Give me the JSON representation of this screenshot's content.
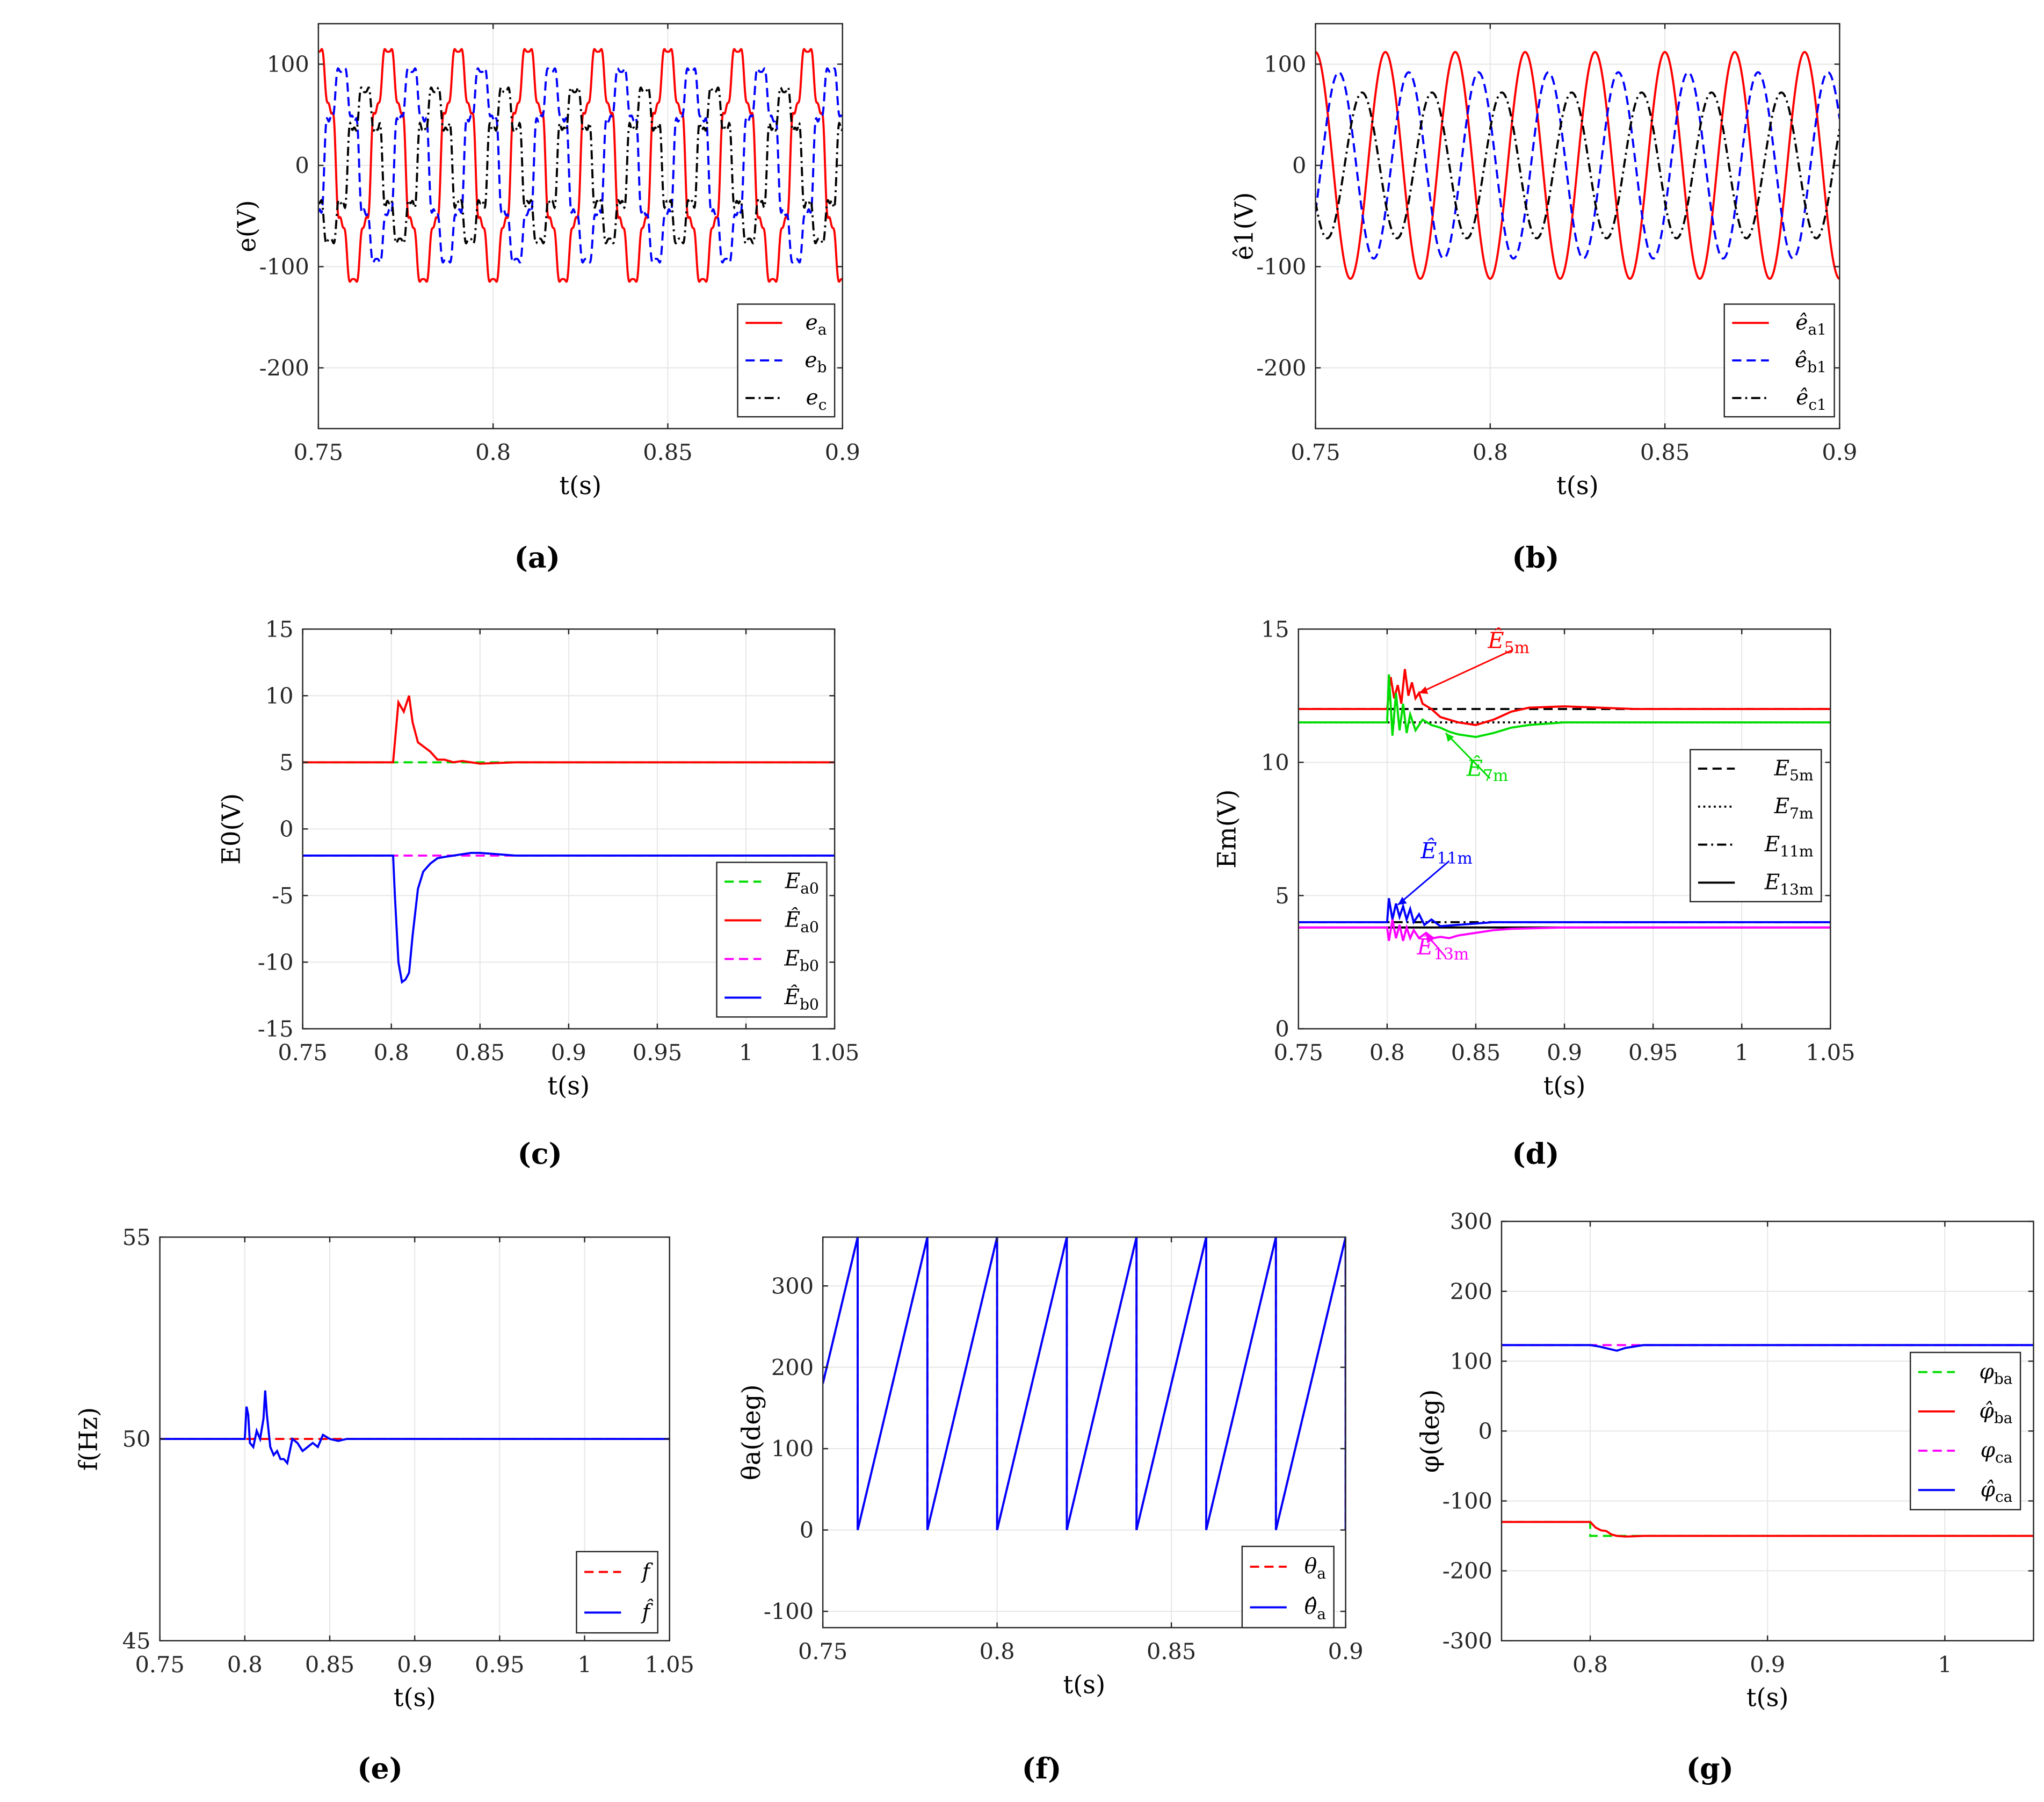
{
  "figure": {
    "background": "#ffffff",
    "colors": {
      "red": "#ff0000",
      "blue": "#0000ff",
      "black": "#000000",
      "green": "#00dd00",
      "magenta": "#ff00ff",
      "grid": "#e6e6e6"
    }
  },
  "chart_data": [
    {
      "id": "a",
      "type": "line",
      "panel_label": "(a)",
      "xlabel": "t(s)",
      "ylabel": "e(V)",
      "xlim": [
        0.75,
        0.9
      ],
      "ylim": [
        -260,
        140
      ],
      "xticks": [
        0.75,
        0.8,
        0.85,
        0.9
      ],
      "xticklabels": [
        "0.75",
        "0.8",
        "0.85",
        "0.9"
      ],
      "yticks": [
        -200,
        -100,
        0,
        100
      ],
      "yticklabels": [
        "-200",
        "-100",
        "0",
        "100"
      ],
      "grid": true,
      "legend_position": "bottom-right",
      "series": [
        {
          "name": "ea",
          "legend_label": "e_a",
          "color": "#ff0000",
          "dash": "solid",
          "waveform": {
            "fundamental_amplitude": 112,
            "frequency_hz": 50,
            "phase_deg": -90,
            "harmonics": [
              [
                5,
                12
              ],
              [
                7,
                11.5
              ],
              [
                11,
                4
              ],
              [
                13,
                3.8
              ]
            ]
          }
        },
        {
          "name": "eb",
          "legend_label": "e_b",
          "color": "#0000ff",
          "dash": "dashed",
          "waveform": {
            "fundamental_amplitude": 92,
            "frequency_hz": 50,
            "phase_deg": 150,
            "harmonics": [
              [
                5,
                12
              ],
              [
                7,
                11.5
              ],
              [
                11,
                4
              ],
              [
                13,
                3.8
              ]
            ]
          }
        },
        {
          "name": "ec",
          "legend_label": "e_c",
          "color": "#000000",
          "dash": "dashdot",
          "waveform": {
            "fundamental_amplitude": 72,
            "frequency_hz": 50,
            "phase_deg": 30,
            "harmonics": [
              [
                5,
                12
              ],
              [
                7,
                11.5
              ],
              [
                11,
                4
              ],
              [
                13,
                3.8
              ]
            ]
          }
        }
      ]
    },
    {
      "id": "b",
      "type": "line",
      "panel_label": "(b)",
      "xlabel": "t(s)",
      "ylabel": "ê1(V)",
      "xlim": [
        0.75,
        0.9
      ],
      "ylim": [
        -260,
        140
      ],
      "xticks": [
        0.75,
        0.8,
        0.85,
        0.9
      ],
      "xticklabels": [
        "0.75",
        "0.8",
        "0.85",
        "0.9"
      ],
      "yticks": [
        -200,
        -100,
        0,
        100
      ],
      "yticklabels": [
        "-200",
        "-100",
        "0",
        "100"
      ],
      "grid": true,
      "legend_position": "bottom-right",
      "series": [
        {
          "name": "êa1",
          "legend_label": "ê_a1",
          "color": "#ff0000",
          "dash": "solid",
          "waveform": {
            "fundamental_amplitude": 112,
            "frequency_hz": 50,
            "phase_deg": -90,
            "harmonics": []
          }
        },
        {
          "name": "êb1",
          "legend_label": "ê_b1",
          "color": "#0000ff",
          "dash": "dashed",
          "waveform": {
            "fundamental_amplitude": 92,
            "frequency_hz": 50,
            "phase_deg": 150,
            "harmonics": []
          }
        },
        {
          "name": "êc1",
          "legend_label": "ê_c1",
          "color": "#000000",
          "dash": "dashdot",
          "waveform": {
            "fundamental_amplitude": 72,
            "frequency_hz": 50,
            "phase_deg": 30,
            "harmonics": []
          }
        }
      ]
    },
    {
      "id": "c",
      "type": "line",
      "panel_label": "(c)",
      "xlabel": "t(s)",
      "ylabel": "E0(V)",
      "xlim": [
        0.75,
        1.05
      ],
      "ylim": [
        -15,
        15
      ],
      "xticks": [
        0.75,
        0.8,
        0.85,
        0.9,
        0.95,
        1,
        1.05
      ],
      "xticklabels": [
        "0.75",
        "0.8",
        "0.85",
        "0.9",
        "0.95",
        "1",
        "1.05"
      ],
      "yticks": [
        -15,
        -10,
        -5,
        0,
        5,
        10,
        15
      ],
      "yticklabels": [
        "-15",
        "-10",
        "-5",
        "0",
        "5",
        "10",
        "15"
      ],
      "grid": true,
      "legend_position": "bottom-right",
      "series": [
        {
          "name": "Ea0",
          "legend_label": "E_a0",
          "color": "#00dd00",
          "dash": "dashed",
          "x": [
            0.75,
            1.05
          ],
          "y": [
            5,
            5
          ]
        },
        {
          "name": "Êa0",
          "legend_label": "Ê_a0",
          "color": "#ff0000",
          "dash": "solid",
          "x": [
            0.75,
            0.801,
            0.804,
            0.807,
            0.81,
            0.812,
            0.815,
            0.818,
            0.822,
            0.826,
            0.83,
            0.835,
            0.84,
            0.845,
            0.85,
            0.86,
            0.87,
            0.88,
            1.05
          ],
          "y": [
            5,
            5,
            9.5,
            8.8,
            10,
            8,
            6.5,
            6.2,
            5.8,
            5.2,
            5.2,
            5.0,
            5.1,
            5.0,
            4.9,
            4.95,
            5.0,
            5.0,
            5.0
          ]
        },
        {
          "name": "Eb0",
          "legend_label": "E_b0",
          "color": "#ff00ff",
          "dash": "dashed",
          "x": [
            0.75,
            1.05
          ],
          "y": [
            -2,
            -2
          ]
        },
        {
          "name": "Êb0",
          "legend_label": "Ê_b0",
          "color": "#0000ff",
          "dash": "solid",
          "x": [
            0.75,
            0.801,
            0.802,
            0.804,
            0.806,
            0.808,
            0.81,
            0.812,
            0.815,
            0.818,
            0.822,
            0.826,
            0.83,
            0.835,
            0.84,
            0.845,
            0.85,
            0.86,
            0.87,
            1.05
          ],
          "y": [
            -2,
            -2,
            -5,
            -10,
            -11.5,
            -11.3,
            -10.8,
            -8,
            -4.5,
            -3.2,
            -2.6,
            -2.2,
            -2.1,
            -2.0,
            -1.9,
            -1.8,
            -1.8,
            -1.9,
            -2.0,
            -2.0
          ]
        }
      ]
    },
    {
      "id": "d",
      "type": "line",
      "panel_label": "(d)",
      "xlabel": "t(s)",
      "ylabel": "Em(V)",
      "xlim": [
        0.75,
        1.05
      ],
      "ylim": [
        0,
        15
      ],
      "xticks": [
        0.75,
        0.8,
        0.85,
        0.9,
        0.95,
        1,
        1.05
      ],
      "xticklabels": [
        "0.75",
        "0.8",
        "0.85",
        "0.9",
        "0.95",
        "1",
        "1.05"
      ],
      "yticks": [
        0,
        5,
        10,
        15
      ],
      "yticklabels": [
        "0",
        "5",
        "10",
        "15"
      ],
      "grid": true,
      "legend_position": "right",
      "series": [
        {
          "name": "E5m",
          "legend_label": "E_5m",
          "color": "#000000",
          "dash": "dashed",
          "in_legend": true,
          "x": [
            0.75,
            1.05
          ],
          "y": [
            12,
            12
          ]
        },
        {
          "name": "E7m",
          "legend_label": "E_7m",
          "color": "#000000",
          "dash": "dotted",
          "in_legend": true,
          "x": [
            0.75,
            1.05
          ],
          "y": [
            11.5,
            11.5
          ]
        },
        {
          "name": "E11m",
          "legend_label": "E_11m",
          "color": "#000000",
          "dash": "dashdot",
          "in_legend": true,
          "x": [
            0.75,
            1.05
          ],
          "y": [
            4,
            4
          ]
        },
        {
          "name": "E13m",
          "legend_label": "E_13m",
          "color": "#000000",
          "dash": "solid",
          "in_legend": true,
          "x": [
            0.75,
            1.05
          ],
          "y": [
            3.8,
            3.8
          ]
        },
        {
          "name": "Ê5m",
          "color": "#ff0000",
          "dash": "solid",
          "in_legend": false,
          "x": [
            0.75,
            0.8,
            0.802,
            0.804,
            0.806,
            0.808,
            0.81,
            0.812,
            0.814,
            0.816,
            0.818,
            0.82,
            0.825,
            0.83,
            0.84,
            0.85,
            0.86,
            0.87,
            0.88,
            0.9,
            0.92,
            0.94,
            1.05
          ],
          "y": [
            12,
            12,
            13.2,
            12.4,
            12.9,
            12.2,
            13.5,
            12.5,
            13,
            12.4,
            12.6,
            12.2,
            12,
            11.7,
            11.5,
            11.4,
            11.6,
            11.9,
            12.05,
            12.1,
            12.05,
            12,
            12
          ]
        },
        {
          "name": "Ê7m",
          "color": "#00dd00",
          "dash": "solid",
          "in_legend": false,
          "x": [
            0.75,
            0.8,
            0.801,
            0.803,
            0.805,
            0.807,
            0.809,
            0.811,
            0.813,
            0.816,
            0.82,
            0.825,
            0.83,
            0.835,
            0.84,
            0.845,
            0.85,
            0.86,
            0.87,
            0.88,
            0.9,
            0.93,
            1.05
          ],
          "y": [
            11.5,
            11.5,
            13.3,
            11.0,
            12.6,
            11.2,
            12.2,
            11.1,
            11.8,
            11.2,
            11.6,
            11.4,
            11.3,
            11.15,
            11.05,
            11.0,
            10.95,
            11.1,
            11.3,
            11.4,
            11.5,
            11.5,
            11.5
          ]
        },
        {
          "name": "Ê11m",
          "color": "#0000ff",
          "dash": "solid",
          "in_legend": false,
          "x": [
            0.75,
            0.8,
            0.801,
            0.803,
            0.805,
            0.807,
            0.809,
            0.811,
            0.813,
            0.815,
            0.818,
            0.821,
            0.825,
            0.83,
            0.84,
            0.85,
            0.86,
            0.88,
            1.05
          ],
          "y": [
            4,
            4,
            4.9,
            4.1,
            4.7,
            4.2,
            4.6,
            4.1,
            4.5,
            4.0,
            4.3,
            3.9,
            4.1,
            3.85,
            3.9,
            3.95,
            4.0,
            4.0,
            4.0
          ]
        },
        {
          "name": "Ê13m",
          "color": "#ff00ff",
          "dash": "solid",
          "in_legend": false,
          "x": [
            0.75,
            0.8,
            0.801,
            0.803,
            0.805,
            0.807,
            0.809,
            0.811,
            0.813,
            0.815,
            0.818,
            0.822,
            0.826,
            0.83,
            0.835,
            0.84,
            0.85,
            0.86,
            0.87,
            0.9,
            1.05
          ],
          "y": [
            3.8,
            3.8,
            3.3,
            4.1,
            3.4,
            3.9,
            3.3,
            3.8,
            3.4,
            3.7,
            3.4,
            3.6,
            3.4,
            3.45,
            3.4,
            3.5,
            3.6,
            3.7,
            3.75,
            3.8,
            3.8
          ]
        }
      ],
      "annotations": [
        {
          "text": "Ê5m",
          "color": "#ff0000",
          "text_at": [
            0.87,
            13.9
          ],
          "arrow_to": [
            0.818,
            12.6
          ]
        },
        {
          "text": "Ê7m",
          "color": "#00dd00",
          "text_at": [
            0.858,
            9.1
          ],
          "arrow_to": [
            0.833,
            11.1
          ]
        },
        {
          "text": "Ê11m",
          "color": "#0000ff",
          "text_at": [
            0.835,
            6.0
          ],
          "arrow_to": [
            0.806,
            4.65
          ]
        },
        {
          "text": "Ê13m",
          "color": "#ff00ff",
          "text_at": [
            0.833,
            2.4
          ],
          "arrow_to": [
            0.822,
            3.55
          ]
        }
      ]
    },
    {
      "id": "e",
      "type": "line",
      "panel_label": "(e)",
      "xlabel": "t(s)",
      "ylabel": "f(Hz)",
      "xlim": [
        0.75,
        1.05
      ],
      "ylim": [
        45,
        55
      ],
      "xticks": [
        0.75,
        0.8,
        0.85,
        0.9,
        0.95,
        1,
        1.05
      ],
      "xticklabels": [
        "0.75",
        "0.8",
        "0.85",
        "0.9",
        "0.95",
        "1",
        "1.05"
      ],
      "yticks": [
        45,
        50,
        55
      ],
      "yticklabels": [
        "45",
        "50",
        "55"
      ],
      "grid": true,
      "legend_position": "bottom-right",
      "series": [
        {
          "name": "f",
          "legend_label": "f",
          "color": "#ff0000",
          "dash": "dashed",
          "x": [
            0.75,
            1.05
          ],
          "y": [
            50,
            50
          ]
        },
        {
          "name": "f̂",
          "legend_label": "f̂",
          "color": "#0000ff",
          "dash": "solid",
          "x": [
            0.75,
            0.8,
            0.801,
            0.802,
            0.803,
            0.805,
            0.807,
            0.809,
            0.811,
            0.812,
            0.813,
            0.815,
            0.817,
            0.819,
            0.821,
            0.823,
            0.825,
            0.828,
            0.831,
            0.834,
            0.837,
            0.84,
            0.843,
            0.846,
            0.85,
            0.855,
            0.86,
            0.87,
            0.88,
            0.89,
            0.9,
            1.05
          ],
          "y": [
            50,
            50,
            50.8,
            50.6,
            49.9,
            49.8,
            50.2,
            50.0,
            50.5,
            51.2,
            50.6,
            49.8,
            49.6,
            49.7,
            49.5,
            49.5,
            49.4,
            50.0,
            49.9,
            49.7,
            49.8,
            49.9,
            49.8,
            50.1,
            50.0,
            49.95,
            50.0,
            50.0,
            50.0,
            50.0,
            50.0,
            50.0
          ]
        }
      ]
    },
    {
      "id": "f",
      "type": "line",
      "panel_label": "(f)",
      "xlabel": "t(s)",
      "ylabel": "θa(deg)",
      "xlim": [
        0.75,
        0.9
      ],
      "ylim": [
        -120,
        360
      ],
      "xticks": [
        0.75,
        0.8,
        0.85,
        0.9
      ],
      "xticklabels": [
        "0.75",
        "0.8",
        "0.85",
        "0.9"
      ],
      "yticks": [
        -100,
        0,
        100,
        200,
        300
      ],
      "yticklabels": [
        "-100",
        "0",
        "100",
        "200",
        "300"
      ],
      "grid": true,
      "legend_position": "bottom-right",
      "series": [
        {
          "name": "θa",
          "legend_label": "θ_a",
          "color": "#ff0000",
          "dash": "dashed",
          "sawtooth": {
            "period_s": 0.02,
            "start_phase_deg": 180,
            "max_deg": 360
          }
        },
        {
          "name": "θ̂a",
          "legend_label": "θ̂_a",
          "color": "#0000ff",
          "dash": "solid",
          "sawtooth": {
            "period_s": 0.02,
            "start_phase_deg": 180,
            "max_deg": 360
          }
        }
      ]
    },
    {
      "id": "g",
      "type": "line",
      "panel_label": "(g)",
      "xlabel": "t(s)",
      "ylabel": "φ(deg)",
      "xlim": [
        0.75,
        1.05
      ],
      "ylim": [
        -300,
        300
      ],
      "xticks": [
        0.8,
        0.9,
        1
      ],
      "xticklabels": [
        "0.8",
        "0.9",
        "1"
      ],
      "yticks": [
        -300,
        -200,
        -100,
        0,
        100,
        200,
        300
      ],
      "yticklabels": [
        "-300",
        "-200",
        "-100",
        "0",
        "100",
        "200",
        "300"
      ],
      "grid": true,
      "legend_position": "right",
      "series": [
        {
          "name": "φba",
          "legend_label": "φ_ba",
          "color": "#00dd00",
          "dash": "dashed",
          "x": [
            0.75,
            0.8,
            0.8,
            1.05
          ],
          "y": [
            -130,
            -130,
            -150,
            -150
          ]
        },
        {
          "name": "φ̂ba",
          "legend_label": "φ̂_ba",
          "color": "#ff0000",
          "dash": "solid",
          "x": [
            0.75,
            0.8,
            0.803,
            0.806,
            0.809,
            0.812,
            0.815,
            0.82,
            0.83,
            1.05
          ],
          "y": [
            -130,
            -130,
            -138,
            -142,
            -143,
            -148,
            -150,
            -151,
            -150,
            -150
          ]
        },
        {
          "name": "φca",
          "legend_label": "φ_ca",
          "color": "#ff00ff",
          "dash": "dashed",
          "x": [
            0.75,
            1.05
          ],
          "y": [
            123,
            123
          ]
        },
        {
          "name": "φ̂ca",
          "legend_label": "φ̂_ca",
          "color": "#0000ff",
          "dash": "solid",
          "x": [
            0.75,
            0.8,
            0.805,
            0.81,
            0.815,
            0.82,
            0.825,
            0.83,
            1.05
          ],
          "y": [
            123,
            123,
            121,
            118,
            115,
            119,
            121,
            123,
            123
          ]
        }
      ]
    }
  ]
}
